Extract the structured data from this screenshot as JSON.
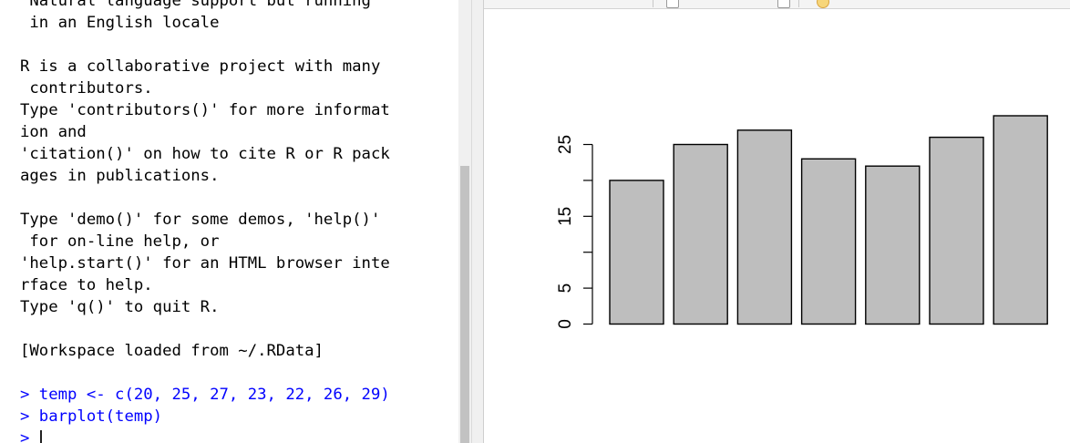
{
  "console": {
    "lines": [
      {
        "text": " Natural language support but running",
        "kind": "output"
      },
      {
        "text": " in an English locale",
        "kind": "output"
      },
      {
        "text": "",
        "kind": "output"
      },
      {
        "text": "R is a collaborative project with many",
        "kind": "output"
      },
      {
        "text": " contributors.",
        "kind": "output"
      },
      {
        "text": "Type 'contributors()' for more informat",
        "kind": "output"
      },
      {
        "text": "ion and",
        "kind": "output"
      },
      {
        "text": "'citation()' on how to cite R or R pack",
        "kind": "output"
      },
      {
        "text": "ages in publications.",
        "kind": "output"
      },
      {
        "text": "",
        "kind": "output"
      },
      {
        "text": "Type 'demo()' for some demos, 'help()'",
        "kind": "output"
      },
      {
        "text": " for on-line help, or",
        "kind": "output"
      },
      {
        "text": "'help.start()' for an HTML browser inte",
        "kind": "output"
      },
      {
        "text": "rface to help.",
        "kind": "output"
      },
      {
        "text": "Type 'q()' to quit R.",
        "kind": "output"
      },
      {
        "text": "",
        "kind": "output"
      },
      {
        "text": "[Workspace loaded from ~/.RData]",
        "kind": "output"
      },
      {
        "text": "",
        "kind": "output"
      },
      {
        "text": "> temp <- c(20, 25, 27, 23, 22, 26, 29)",
        "kind": "input"
      },
      {
        "text": "> barplot(temp)",
        "kind": "input"
      }
    ],
    "prompt": ">"
  },
  "chart_data": {
    "type": "bar",
    "values": [
      20,
      25,
      27,
      23,
      22,
      26,
      29
    ],
    "yticks": [
      0,
      5,
      15,
      25
    ],
    "ylim": [
      0,
      29
    ],
    "bar_color": "#bebebe",
    "title": "",
    "xlabel": "",
    "ylabel": ""
  }
}
